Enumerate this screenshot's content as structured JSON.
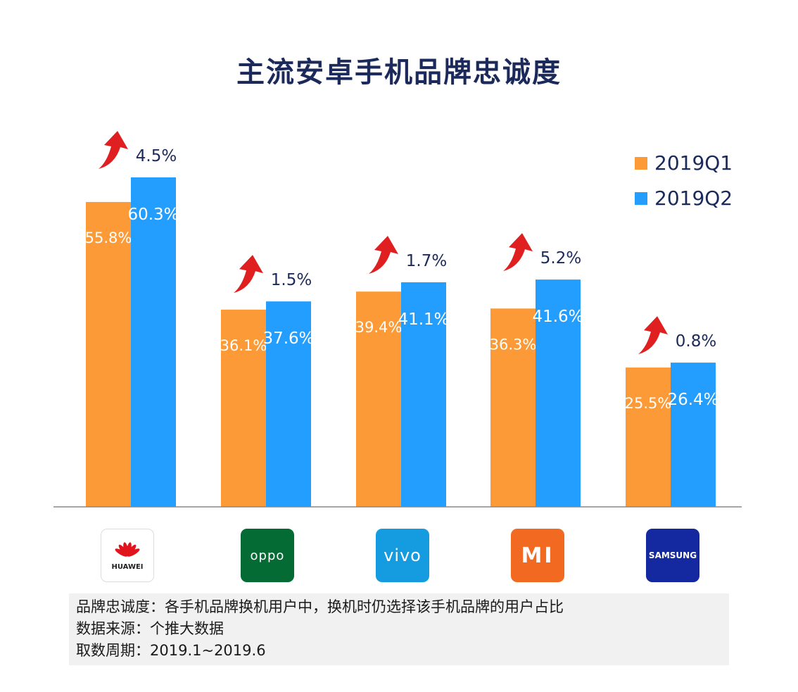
{
  "chart_data": {
    "type": "bar",
    "title": "主流安卓手机品牌忠诚度",
    "categories": [
      "HUAWEI",
      "OPPO",
      "vivo",
      "MI",
      "SAMSUNG"
    ],
    "series": [
      {
        "name": "2019Q1",
        "color": "#fb9a36",
        "values": [
          55.8,
          36.1,
          39.4,
          36.3,
          25.5
        ]
      },
      {
        "name": "2019Q2",
        "color": "#239efe",
        "values": [
          60.3,
          37.6,
          41.1,
          41.6,
          26.4
        ]
      }
    ],
    "value_labels": {
      "2019Q1": [
        "55.8%",
        "36.1%",
        "39.4%",
        "36.3%",
        "25.5%"
      ],
      "2019Q2": [
        "60.3%",
        "37.6%",
        "41.1%",
        "41.6%",
        "26.4%"
      ]
    },
    "growth_labels": [
      "4.5%",
      "1.5%",
      "1.7%",
      "5.2%",
      "0.8%"
    ],
    "legend_position": "top-right",
    "grid": false,
    "ylim": [
      0,
      60.3
    ]
  },
  "logos": [
    {
      "text": "HUAWEI",
      "bg": "#ffffff",
      "fg": "#222222",
      "icon": "huawei-petal-icon"
    },
    {
      "text": "oppo",
      "bg": "#046b35",
      "fg": "#ffffff"
    },
    {
      "text": "vivo",
      "bg": "#159be0",
      "fg": "#ffffff"
    },
    {
      "text": "MI",
      "bg": "#f26a22",
      "fg": "#ffffff"
    },
    {
      "text": "SAMSUNG",
      "bg": "#1428a0",
      "fg": "#ffffff"
    }
  ],
  "notes": [
    "品牌忠诚度：各手机品牌换机用户中，换机时仍选择该手机品牌的用户占比",
    "数据来源：个推大数据",
    "取数周期：2019.1~2019.6"
  ],
  "colors": {
    "arrow": "#e02020",
    "title": "#1b2a5a",
    "axis": "#888888"
  }
}
